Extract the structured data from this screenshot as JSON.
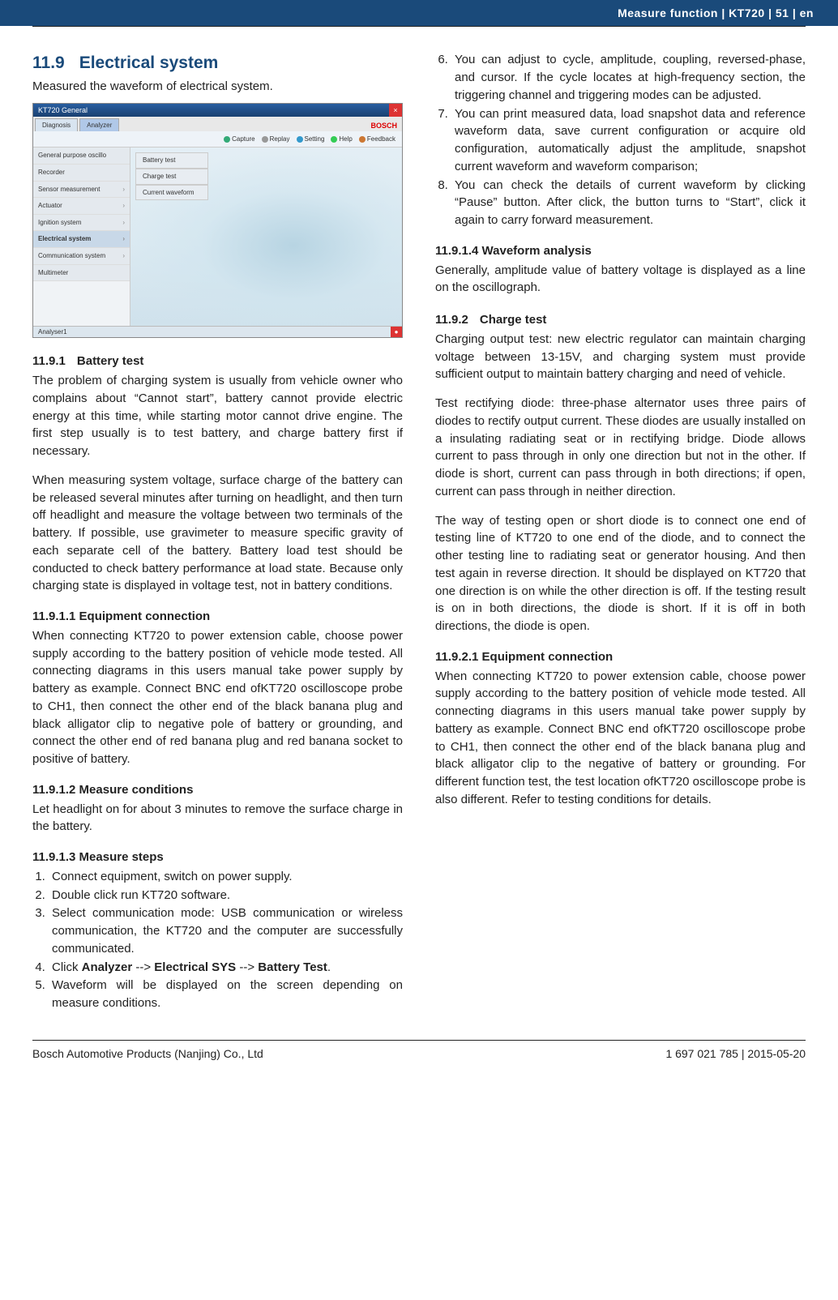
{
  "header": {
    "text": "Measure function  |  KT720  |  51   |  en"
  },
  "left": {
    "section_num": "11.9",
    "section_title": "Electrical system",
    "section_sub": "Measured the waveform of electrical system.",
    "screenshot": {
      "title": "KT720 General",
      "tabs": {
        "diagnosis": "Diagnosis",
        "analyzer": "Analyzer"
      },
      "brand": "BOSCH",
      "toolbar": {
        "capture": "Capture",
        "replay": "Replay",
        "setting": "Setting",
        "help": "Help",
        "feedback": "Feedback"
      },
      "sidebar": [
        "General purpose oscillo",
        "Recorder",
        "Sensor measurement",
        "Actuator",
        "Ignition system",
        "Electrical system",
        "Communication system",
        "Multimeter"
      ],
      "submenu": [
        "Battery test",
        "Charge test",
        "Current waveform"
      ],
      "status": "Analyser1"
    },
    "h_11_9_1_num": "11.9.1",
    "h_11_9_1": "Battery test",
    "p1": "The problem of charging system is usually from vehicle owner who complains about “Cannot start”, battery cannot provide electric energy at this time, while starting motor cannot drive engine. The first step usually is to test battery, and charge battery first if necessary.",
    "p2": "When measuring system voltage, surface charge of the battery can be released several minutes after turning on headlight, and then turn off headlight and measure the voltage between two terminals of the battery. If possible, use gravimeter to measure specific gravity of each separate cell of the battery. Battery load test should be conducted to check battery performance at load state. Because only charging state is displayed in voltage test, not in battery conditions.",
    "h_11_9_1_1": "11.9.1.1 Equipment connection",
    "p3": "When connecting KT720 to power extension cable, choose power supply according to the battery position of vehicle mode tested. All connecting diagrams in this users manual take power supply by battery as example. Connect BNC end ofKT720 oscilloscope probe to CH1, then connect the other end of the black banana plug and black alligator clip to negative pole of battery or grounding, and connect the other end of red banana plug and red banana socket to positive of battery.",
    "h_11_9_1_2": "11.9.1.2 Measure conditions",
    "p4": "Let headlight on for about 3 minutes to remove the surface charge in the battery.",
    "h_11_9_1_3": "11.9.1.3 Measure steps",
    "steps": {
      "s1": "Connect equipment, switch on power supply.",
      "s2": "Double click run KT720 software.",
      "s3": "Select communication mode: USB communication or wireless communication, the KT720 and the computer are successfully communicated.",
      "s4_pre": "Click ",
      "s4_b1": "Analyzer",
      "s4_mid1": " --> ",
      "s4_b2": "Electrical SYS",
      "s4_mid2": " --> ",
      "s4_b3": "Battery Test",
      "s4_post": ".",
      "s5": "Waveform will be displayed on the screen depending on measure conditions."
    }
  },
  "right": {
    "steps": {
      "s6": "You can adjust to cycle, amplitude, coupling, reversed-phase, and cursor. If the cycle locates at high-frequency section, the triggering channel and triggering modes can be adjusted.",
      "s7": "You can print measured data, load snapshot data and reference waveform data, save current configuration or acquire old configuration, automatically adjust the amplitude, snapshot current waveform and waveform comparison;",
      "s8": "You can check the details of current waveform by clicking “Pause” button. After click, the button turns to “Start”, click it again to carry forward measurement."
    },
    "h_11_9_1_4": "11.9.1.4 Waveform analysis",
    "p5": "Generally, amplitude value of battery voltage is displayed as a line on the oscillograph.",
    "h_11_9_2_num": "11.9.2",
    "h_11_9_2": "Charge test",
    "p6": "Charging output test: new electric regulator can maintain charging voltage between 13-15V, and charging system must provide sufficient output to maintain battery charging and need of vehicle.",
    "p7": "Test rectifying diode: three-phase alternator uses three pairs of diodes to rectify output current. These diodes are usually installed on a insulating radiating seat or in rectifying bridge. Diode allows current to pass through in only one direction but not in the other. If diode is short, current can pass through in both directions; if open, current can pass through in neither direction.",
    "p8": "The way of testing open or short diode is to connect one end of testing line of KT720 to one end of the diode, and to connect the other testing line to radiating seat or generator housing. And then test again in reverse direction. It should be displayed on KT720 that one direction is on while the other direction is off. If the testing result is on in both directions, the diode is short. If it is off in both directions, the diode is open.",
    "h_11_9_2_1": "11.9.2.1 Equipment connection",
    "p9": "When connecting KT720 to power extension cable, choose power supply according to the battery position of vehicle mode tested. All connecting diagrams in this users manual take power supply by battery as example. Connect BNC end ofKT720 oscilloscope probe to CH1, then connect the other end of the black banana plug and black alligator clip to the negative of battery or grounding. For different function test, the test location ofKT720 oscilloscope probe is also different. Refer to testing conditions for details."
  },
  "footer": {
    "left": "Bosch Automotive Products (Nanjing) Co., Ltd",
    "right": "1 697 021 785 | 2015-05-20"
  }
}
